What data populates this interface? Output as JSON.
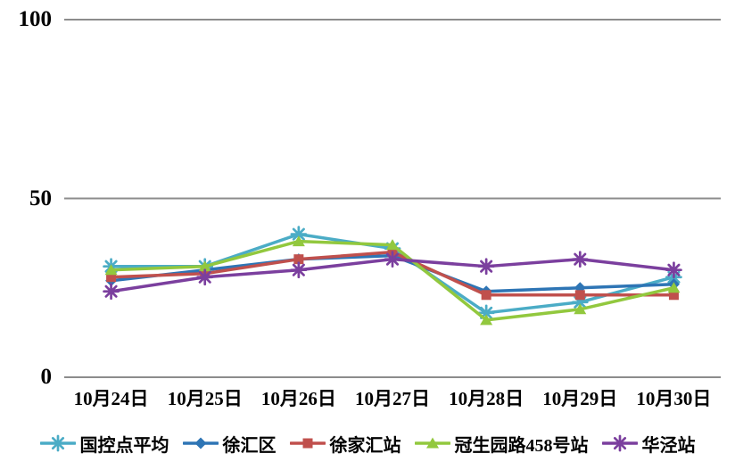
{
  "chart_data": {
    "type": "line",
    "title": "",
    "xlabel": "",
    "ylabel": "",
    "ylim": [
      0,
      100
    ],
    "yticks": [
      "0",
      "50",
      "100"
    ],
    "grid": "horizontal-only",
    "legend_position": "bottom",
    "categories": [
      "10月24日",
      "10月25日",
      "10月26日",
      "10月27日",
      "10月28日",
      "10月29日",
      "10月30日"
    ],
    "series": [
      {
        "name": "国控点平均",
        "color": "#4BACC6",
        "marker": "asterisk",
        "values": [
          31,
          31,
          40,
          36,
          18,
          21,
          28
        ]
      },
      {
        "name": "徐汇区",
        "color": "#2E75B5",
        "marker": "diamond",
        "values": [
          27,
          30,
          33,
          34,
          24,
          25,
          26
        ]
      },
      {
        "name": "徐家汇站",
        "color": "#C0504D",
        "marker": "square",
        "values": [
          28,
          29,
          33,
          35,
          23,
          23,
          23
        ]
      },
      {
        "name": "冠生园路458号站",
        "color": "#92C83E",
        "marker": "triangle",
        "values": [
          30,
          31,
          38,
          37,
          16,
          19,
          25
        ]
      },
      {
        "name": "华泾站",
        "color": "#7B3F9E",
        "marker": "asterisk",
        "values": [
          24,
          28,
          30,
          33,
          31,
          33,
          30
        ]
      }
    ],
    "colors": {
      "gridline": "#8C8C8C",
      "text": "#000000",
      "background": "#FFFFFF"
    }
  }
}
